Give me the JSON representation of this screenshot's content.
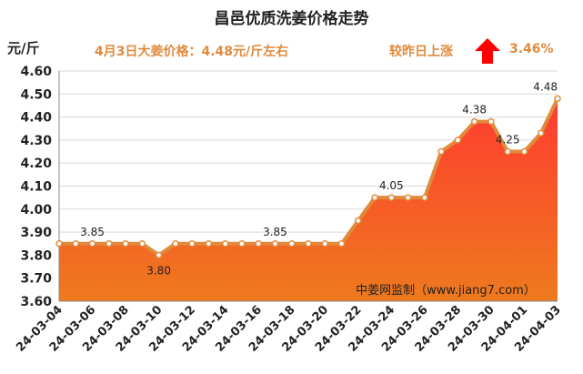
{
  "header": {
    "title": "昌邑优质洗姜价格走势",
    "unit": "元/斤",
    "price_note": "4月3日大姜价格：4.48元/斤左右",
    "change_label": "较昨日上涨",
    "change_pct": "3.46%",
    "change_icon": "up-arrow-icon",
    "accent_color": "#e08a3c",
    "arrow_color": "#ff0000"
  },
  "chart_data": {
    "type": "area",
    "title": "昌邑优质洗姜价格走势",
    "ylabel": "元/斤",
    "xlabel": "",
    "ylim": [
      3.6,
      4.6
    ],
    "yticks": [
      "3.60",
      "3.70",
      "3.80",
      "3.90",
      "4.00",
      "4.10",
      "4.20",
      "4.30",
      "4.40",
      "4.50",
      "4.60"
    ],
    "x": [
      "24-03-04",
      "24-03-05",
      "24-03-06",
      "24-03-07",
      "24-03-08",
      "24-03-09",
      "24-03-10",
      "24-03-11",
      "24-03-12",
      "24-03-13",
      "24-03-14",
      "24-03-15",
      "24-03-16",
      "24-03-17",
      "24-03-18",
      "24-03-19",
      "24-03-20",
      "24-03-21",
      "24-03-22",
      "24-03-23",
      "24-03-24",
      "24-03-25",
      "24-03-26",
      "24-03-27",
      "24-03-28",
      "24-03-29",
      "24-03-30",
      "24-03-31",
      "24-04-01",
      "24-04-02",
      "24-04-03"
    ],
    "xtick_labels": [
      "24-03-04",
      "24-03-06",
      "24-03-08",
      "24-03-10",
      "24-03-12",
      "24-03-14",
      "24-03-16",
      "24-03-18",
      "24-03-20",
      "24-03-22",
      "24-03-24",
      "24-03-26",
      "24-03-28",
      "24-03-30",
      "24-04-01",
      "24-04-03"
    ],
    "values": [
      3.85,
      3.85,
      3.85,
      3.85,
      3.85,
      3.85,
      3.8,
      3.85,
      3.85,
      3.85,
      3.85,
      3.85,
      3.85,
      3.85,
      3.85,
      3.85,
      3.85,
      3.85,
      3.95,
      4.05,
      4.05,
      4.05,
      4.05,
      4.25,
      4.3,
      4.38,
      4.38,
      4.25,
      4.25,
      4.33,
      4.48
    ],
    "data_labels": [
      {
        "x": "24-03-06",
        "text": "3.85"
      },
      {
        "x": "24-03-10",
        "text": "3.80"
      },
      {
        "x": "24-03-17",
        "text": "3.85"
      },
      {
        "x": "24-03-24",
        "text": "4.05"
      },
      {
        "x": "24-03-29",
        "text": "4.38"
      },
      {
        "x": "24-03-31",
        "text": "4.25"
      },
      {
        "x": "24-04-03",
        "text": "4.48"
      }
    ],
    "line_color": "#e08a3c",
    "fill_top_color": "#ff3b30",
    "fill_bottom_color": "#ee7a1e",
    "grid": true,
    "watermark": "中姜网监制（www.jiang7.com）"
  }
}
